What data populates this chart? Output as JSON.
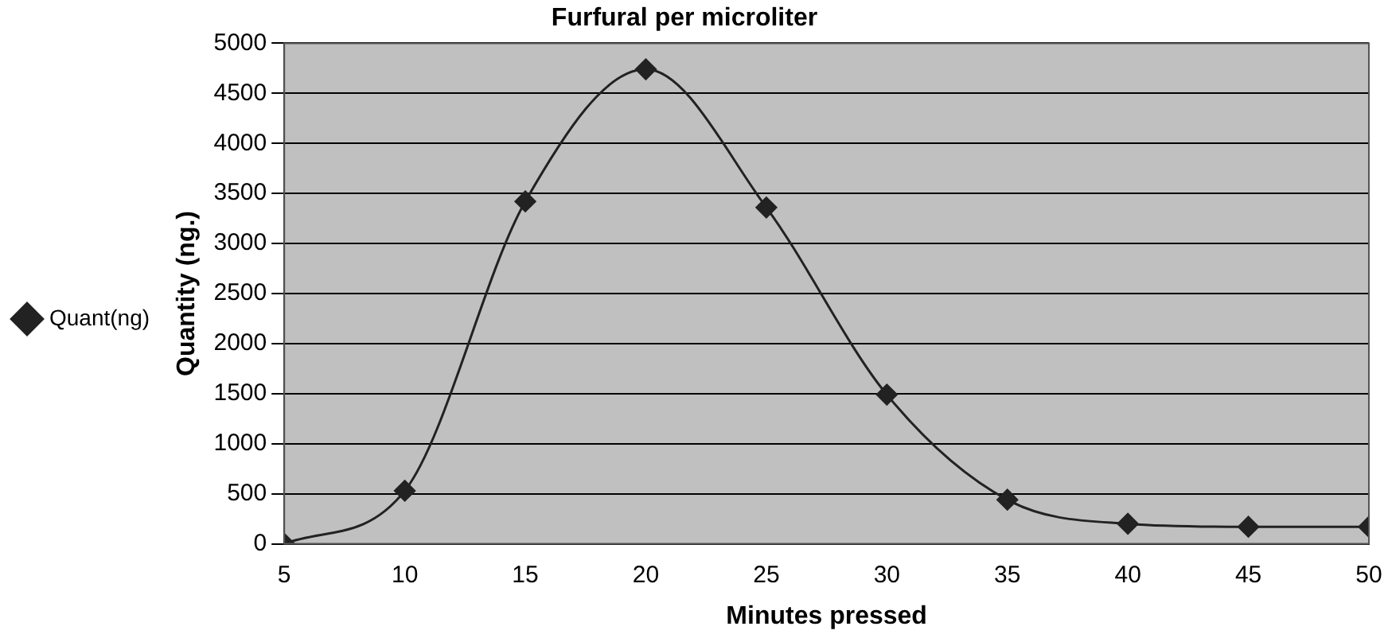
{
  "chart_data": {
    "type": "line",
    "title": "Furfural per microliter",
    "xlabel": "Minutes pressed",
    "ylabel": "Quantity (ng.)",
    "x": [
      5,
      10,
      15,
      20,
      25,
      30,
      35,
      40,
      45,
      50
    ],
    "series": [
      {
        "name": "Quant(ng)",
        "color": "#222222",
        "values": [
          0,
          530,
          3420,
          4740,
          3360,
          1490,
          440,
          200,
          170,
          170
        ]
      }
    ],
    "xlim": [
      5,
      50
    ],
    "xticks": [
      5,
      10,
      15,
      20,
      25,
      30,
      35,
      40,
      45,
      50
    ],
    "ylim": [
      0,
      5000
    ],
    "yticks": [
      0,
      500,
      1000,
      1500,
      2000,
      2500,
      3000,
      3500,
      4000,
      4500,
      5000
    ],
    "grid": "y",
    "legend": "left",
    "marker": "diamond",
    "line_style": "solid"
  }
}
